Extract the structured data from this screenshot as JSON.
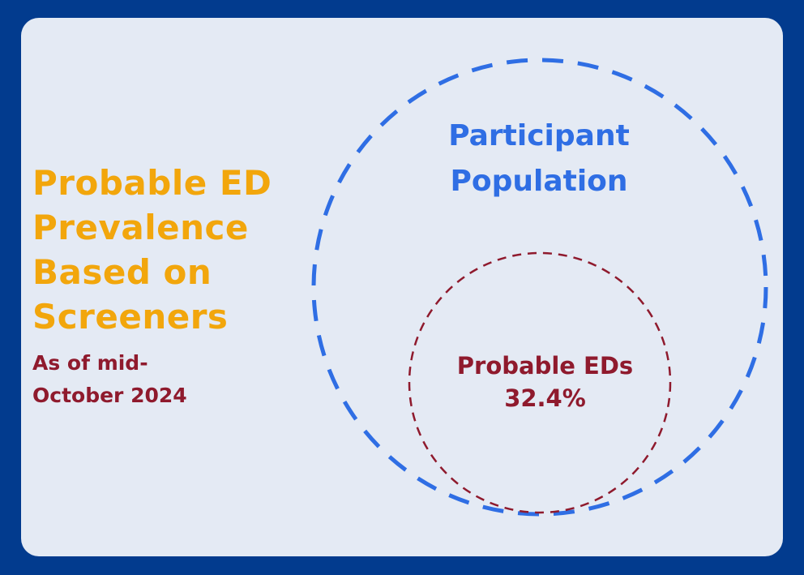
{
  "title": "Probable ED Prevalence Based on Screeners",
  "subtitle": "As of mid-October 2024",
  "diagram": {
    "outer_set": {
      "label": "Participant Population",
      "color": "#2f6ee4"
    },
    "inner_set": {
      "label": "Probable EDs",
      "value": "32.4%",
      "color": "#8f1a2d"
    }
  },
  "colors": {
    "background": "#023b8e",
    "card": "#e4eaf4",
    "title": "#f2a60c"
  }
}
